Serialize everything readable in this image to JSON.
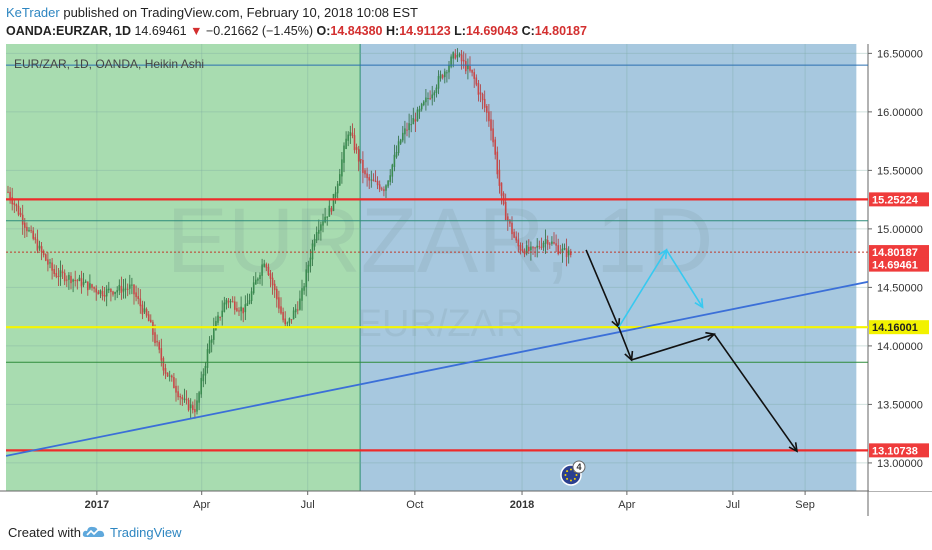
{
  "header": {
    "author": "KeTrader",
    "published_text": "published on TradingView.com, February 10, 2018 10:08 EST",
    "symbol": "OANDA:EURZAR, 1D",
    "last": "14.69461",
    "arrow": "▼",
    "change": "−0.21662 (−1.45%)",
    "o_label": "O:",
    "o_value": "14.84380",
    "h_label": "H:",
    "h_value": "14.91123",
    "l_label": "L:",
    "l_value": "14.69043",
    "c_label": "C:",
    "c_value": "14.80187"
  },
  "footer": {
    "created_with": "Created with",
    "brand": "TradingView",
    "logo_icon": "tradingview-cloud-icon"
  },
  "chart_data": {
    "type": "candlestick",
    "style": "Heikin Ashi",
    "legend_text": "EUR/ZAR, 1D, OANDA, Heikin Ashi",
    "watermark": "EURZAR, 1D",
    "watermark_sub": "EUR/ZAR",
    "ylim": [
      12.76,
      16.58
    ],
    "y_ticks": [
      "13.00000",
      "13.50000",
      "14.00000",
      "14.50000",
      "15.00000",
      "15.50000",
      "16.00000",
      "16.50000"
    ],
    "x_ticks": [
      "2017",
      "Apr",
      "Jul",
      "Oct",
      "2018",
      "Apr",
      "Jul",
      "Sep"
    ],
    "price_labels": [
      {
        "text": "15.25224",
        "value": 15.25224,
        "color": "#ef3b3b"
      },
      {
        "text": "14.80187",
        "value": 14.80187,
        "color": "#ef3b3b"
      },
      {
        "text": "14.69461",
        "value": 14.69461,
        "color": "#ef3b3b"
      },
      {
        "text": "14.16001",
        "value": 14.16001,
        "color": "#f2f200"
      },
      {
        "text": "13.10738",
        "value": 13.10738,
        "color": "#ef3b3b"
      }
    ],
    "horizontal_levels": [
      {
        "value": 16.4,
        "color": "#2a6fb0",
        "kind": "thin"
      },
      {
        "value": 15.25224,
        "color": "#ee2b2b",
        "kind": "thick"
      },
      {
        "value": 15.07,
        "color": "#2e8b7a",
        "kind": "thin"
      },
      {
        "value": 14.80187,
        "color": "#c0392b",
        "kind": "dotted"
      },
      {
        "value": 14.16001,
        "color": "#f6f600",
        "kind": "thick"
      },
      {
        "value": 13.86,
        "color": "#2e8b3a",
        "kind": "thin"
      },
      {
        "value": 13.10738,
        "color": "#ee2b2b",
        "kind": "thick"
      }
    ],
    "trendline": {
      "from": [
        "2016-10",
        13.06
      ],
      "to": [
        "2018-12",
        14.65
      ],
      "color": "#3b6fd8"
    },
    "zones": [
      {
        "name": "green-zone",
        "from": "2016-10",
        "to": "2017-08",
        "color": "#a8dcb0"
      },
      {
        "name": "blue-zone",
        "from": "2017-08",
        "to": "2018-10",
        "color": "#a7c8df"
      }
    ],
    "forecast_paths": [
      {
        "color": "#111111",
        "points": [
          [
            "2018-02-25",
            14.82
          ],
          [
            "2018-03-25",
            14.16
          ]
        ]
      },
      {
        "color": "#37c9f0",
        "points": [
          [
            "2018-03-25",
            14.16
          ],
          [
            "2018-05-05",
            14.82
          ],
          [
            "2018-06-05",
            14.33
          ]
        ]
      },
      {
        "color": "#111111",
        "points": [
          [
            "2018-03-25",
            14.16
          ],
          [
            "2018-04-05",
            13.88
          ],
          [
            "2018-06-15",
            14.1
          ],
          [
            "2018-08-25",
            13.1
          ]
        ]
      }
    ],
    "event_badge": {
      "icon": "eu-flag-icon",
      "count": "4"
    },
    "grid": true
  }
}
